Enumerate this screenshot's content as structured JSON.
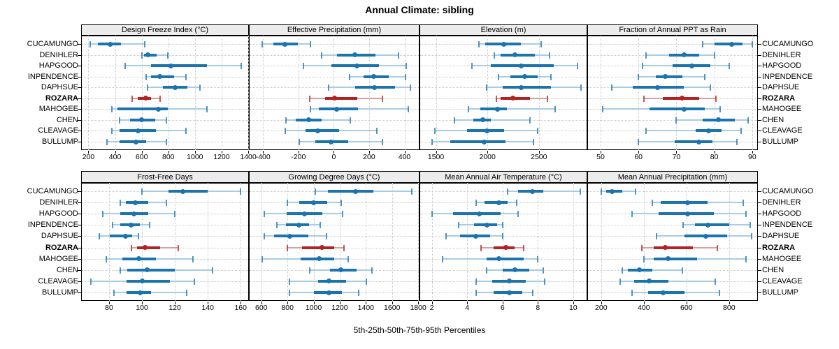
{
  "title": "Annual Climate: sibling",
  "caption": "5th-25th-50th-75th-95th Percentiles",
  "colors": {
    "normal": "#1b74ad",
    "normal_light": "#a8cce2",
    "highlight": "#b22222",
    "highlight_light": "#dc9f9f",
    "strip_bg": "#ececec",
    "panel_border": "#000000",
    "grid": "#c8c8c8"
  },
  "chart_data": {
    "type": "dotplot-percentiles",
    "percentile_labels": [
      "5th",
      "25th",
      "50th",
      "75th",
      "95th"
    ],
    "sites": [
      "CUCAMUNGO",
      "DENIHLER",
      "HAPGOOD",
      "INPENDENCE",
      "DAPHSUE",
      "ROZARA",
      "MAHOGEE",
      "CHEN",
      "CLEAVAGE",
      "BULLUMP"
    ],
    "highlight_site": "ROZARA",
    "legend_position": "none",
    "grid": "dotted",
    "panels": [
      {
        "title": "Design Freeze Index (°C)",
        "xlim": [
          145,
          1405
        ],
        "ticks": [
          200,
          400,
          600,
          800,
          1000,
          1200,
          1400
        ],
        "values": [
          [
            215,
            270,
            365,
            445,
            625
          ],
          [
            600,
            620,
            645,
            710,
            795
          ],
          [
            475,
            670,
            820,
            1090,
            1345
          ],
          [
            635,
            670,
            735,
            845,
            930
          ],
          [
            645,
            760,
            850,
            945,
            1040
          ],
          [
            530,
            570,
            630,
            670,
            740
          ],
          [
            375,
            420,
            725,
            795,
            1090
          ],
          [
            435,
            515,
            600,
            700,
            785
          ],
          [
            375,
            435,
            575,
            705,
            935
          ],
          [
            340,
            435,
            555,
            635,
            785
          ]
        ]
      },
      {
        "title": "Effective Precipitation (mm)",
        "xlim": [
          -480,
          485
        ],
        "ticks": [
          -400,
          -200,
          0,
          200,
          400
        ],
        "values": [
          [
            -405,
            -340,
            -275,
            -205,
            -130
          ],
          [
            -70,
            20,
            120,
            235,
            365
          ],
          [
            -170,
            -15,
            130,
            255,
            410
          ],
          [
            90,
            170,
            225,
            310,
            405
          ],
          [
            -30,
            120,
            230,
            345,
            435
          ],
          [
            -135,
            -50,
            5,
            135,
            275
          ],
          [
            -130,
            -85,
            15,
            135,
            420
          ],
          [
            -270,
            -215,
            -140,
            -70,
            95
          ],
          [
            -275,
            -160,
            -90,
            30,
            245
          ],
          [
            -195,
            -105,
            -15,
            80,
            275
          ]
        ]
      },
      {
        "title": "Elevation (m)",
        "xlim": [
          1340,
          2970
        ],
        "ticks": [
          1500,
          2000,
          2500
        ],
        "values": [
          [
            1920,
            1980,
            2160,
            2325,
            2520
          ],
          [
            2065,
            2130,
            2265,
            2460,
            2600
          ],
          [
            1850,
            2035,
            2325,
            2645,
            2875
          ],
          [
            2105,
            2225,
            2365,
            2485,
            2615
          ],
          [
            1990,
            2150,
            2325,
            2615,
            2910
          ],
          [
            2090,
            2125,
            2250,
            2410,
            2585
          ],
          [
            1815,
            1930,
            2100,
            2190,
            2655
          ],
          [
            1680,
            1865,
            1955,
            2035,
            2415
          ],
          [
            1490,
            1800,
            1995,
            2160,
            2490
          ],
          [
            1465,
            1640,
            1970,
            2175,
            2450
          ]
        ]
      },
      {
        "title": "Fraction of Annual PPT as Rain",
        "xlim": [
          46.5,
          91.5
        ],
        "ticks": [
          50,
          60,
          70,
          80,
          90
        ],
        "values": [
          [
            77,
            80,
            84.5,
            87.5,
            90
          ],
          [
            62,
            68,
            72,
            76,
            80
          ],
          [
            61,
            69,
            74,
            79,
            84
          ],
          [
            60,
            64.5,
            67,
            71.5,
            77.5
          ],
          [
            53,
            58.5,
            65,
            72,
            79
          ],
          [
            61.5,
            66.5,
            71.5,
            76,
            80.5
          ],
          [
            50.5,
            63,
            72,
            77.5,
            81.5
          ],
          [
            70,
            77,
            81,
            85.5,
            89
          ],
          [
            62,
            75,
            78.5,
            82,
            87
          ],
          [
            60,
            69.5,
            76,
            79.5,
            86
          ]
        ]
      },
      {
        "title": "Frost-Free Days",
        "xlim": [
          63,
          165
        ],
        "ticks": [
          80,
          100,
          120,
          140,
          160
        ],
        "values": [
          [
            100,
            116,
            125,
            140,
            160
          ],
          [
            87,
            90,
            96,
            104,
            115
          ],
          [
            76,
            87,
            95,
            104,
            120
          ],
          [
            82,
            87,
            93.5,
            98.5,
            104.5
          ],
          [
            74,
            80.5,
            90,
            94,
            98
          ],
          [
            93.5,
            97,
            102,
            111,
            122
          ],
          [
            78.5,
            88,
            98,
            108.5,
            131
          ],
          [
            87,
            91,
            103,
            120,
            143
          ],
          [
            69,
            90.5,
            100,
            117,
            132
          ],
          [
            83,
            90.5,
            99,
            105.5,
            127
          ]
        ]
      },
      {
        "title": "Growing Degree Days (°C)",
        "xlim": [
          505,
          1810
        ],
        "ticks": [
          600,
          800,
          1000,
          1200,
          1400,
          1600,
          1800
        ],
        "values": [
          [
            1015,
            1110,
            1320,
            1455,
            1750
          ],
          [
            800,
            890,
            1000,
            1105,
            1210
          ],
          [
            620,
            795,
            930,
            1065,
            1220
          ],
          [
            720,
            790,
            890,
            965,
            1050
          ],
          [
            625,
            700,
            820,
            960,
            1100
          ],
          [
            800,
            910,
            1065,
            1160,
            1235
          ],
          [
            605,
            900,
            1045,
            1155,
            1265
          ],
          [
            970,
            1125,
            1210,
            1330,
            1445
          ],
          [
            815,
            1035,
            1115,
            1250,
            1405
          ],
          [
            815,
            1000,
            1115,
            1215,
            1345
          ]
        ]
      },
      {
        "title": "Mean Annual Air Temperature (°C)",
        "xlim": [
          1.3,
          10.8
        ],
        "ticks": [
          2,
          4,
          6,
          8,
          10
        ],
        "values": [
          [
            6.3,
            6.9,
            7.7,
            8.3,
            10.4
          ],
          [
            4.5,
            5.0,
            5.8,
            6.3,
            6.8
          ],
          [
            2.0,
            3.2,
            4.7,
            5.9,
            6.9
          ],
          [
            3.5,
            4.4,
            5.1,
            5.7,
            6.0
          ],
          [
            2.8,
            3.6,
            4.5,
            5.3,
            6.0
          ],
          [
            4.8,
            5.5,
            6.2,
            6.7,
            7.2
          ],
          [
            2.6,
            5.1,
            5.8,
            7.2,
            8.0
          ],
          [
            5.1,
            6.0,
            6.7,
            7.5,
            8.3
          ],
          [
            4.5,
            5.4,
            6.4,
            7.3,
            8.4
          ],
          [
            4.5,
            5.5,
            6.4,
            7.1,
            7.7
          ]
        ]
      },
      {
        "title": "Mean Annual Precipitation (mm)",
        "xlim": [
          135,
          935
        ],
        "ticks": [
          200,
          400,
          600,
          800
        ],
        "values": [
          [
            200,
            225,
            250,
            300,
            360
          ],
          [
            440,
            480,
            605,
            700,
            865
          ],
          [
            345,
            470,
            605,
            730,
            880
          ],
          [
            585,
            640,
            700,
            800,
            900
          ],
          [
            460,
            590,
            690,
            790,
            905
          ],
          [
            390,
            445,
            500,
            630,
            745
          ],
          [
            400,
            445,
            515,
            650,
            880
          ],
          [
            300,
            325,
            380,
            440,
            580
          ],
          [
            290,
            355,
            425,
            515,
            735
          ],
          [
            345,
            420,
            490,
            590,
            755
          ]
        ]
      }
    ]
  }
}
